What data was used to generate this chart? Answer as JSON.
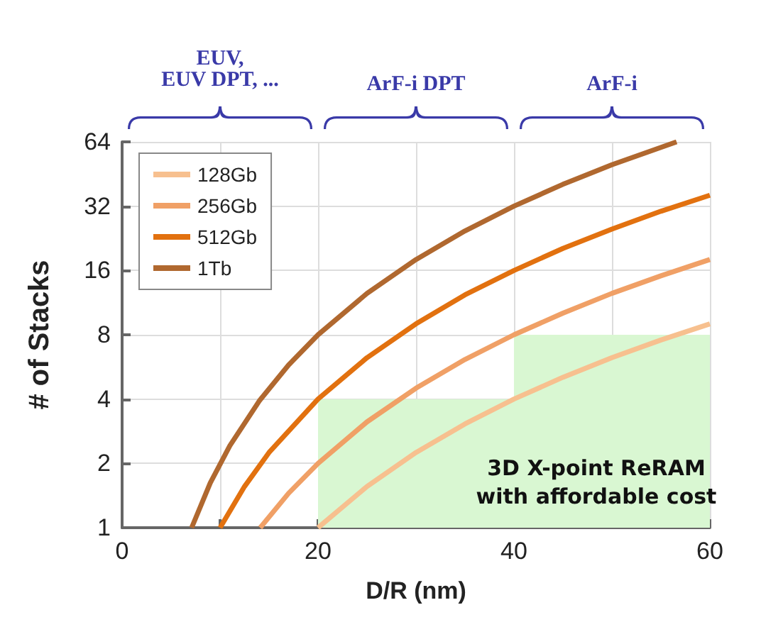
{
  "chart_data": {
    "type": "line",
    "xlabel": "D/R (nm)",
    "ylabel": "# of Stacks",
    "xlim": [
      0,
      60
    ],
    "xticks": [
      0,
      {
        "value": 10,
        "label": null
      },
      20,
      {
        "value": 30,
        "label": null
      },
      40,
      {
        "value": 50,
        "label": null
      },
      60
    ],
    "ylim": [
      1,
      64
    ],
    "yticks": [
      1,
      2,
      4,
      8,
      16,
      32,
      64
    ],
    "log": "y",
    "grid": true,
    "legend": "top left",
    "marker": "none",
    "line_style": "solid",
    "annotations": [
      "EUV,\nEUV DPT, ...",
      "ArF-i DPT",
      "ArF-i",
      "3D X-point ReRAM\nwith affordable cost"
    ],
    "series": [
      {
        "type": "area",
        "color": "#d9f7d2",
        "x": [
          20,
          40,
          40,
          60
        ],
        "values": [
          4,
          4,
          8,
          8
        ]
      },
      {
        "name": "128Gb",
        "color": "#f7c08f",
        "x": [
          20,
          25,
          30,
          35,
          40,
          45,
          50,
          55,
          60
        ],
        "values": [
          1,
          1.56,
          2.25,
          3.06,
          4,
          5.06,
          6.25,
          7.56,
          9
        ]
      },
      {
        "name": "256Gb",
        "color": "#f0a066",
        "x": [
          14.1,
          17,
          20,
          25,
          30,
          35,
          40,
          45,
          50,
          55,
          60
        ],
        "values": [
          1,
          1.45,
          2,
          3.13,
          4.5,
          6.13,
          8,
          10.1,
          12.5,
          15.1,
          18
        ]
      },
      {
        "name": "512Gb",
        "color": "#e2710f",
        "x": [
          10,
          12.5,
          15,
          20,
          25,
          30,
          35,
          40,
          45,
          50,
          55,
          60
        ],
        "values": [
          1,
          1.56,
          2.25,
          4,
          6.25,
          9,
          12.3,
          16,
          20.3,
          25,
          30.3,
          36
        ]
      },
      {
        "name": "1Tb",
        "color": "#b0682f",
        "x": [
          7.1,
          9,
          11,
          14,
          17,
          20,
          25,
          30,
          35,
          40,
          45,
          50,
          56.6
        ],
        "values": [
          1,
          1.62,
          2.42,
          3.92,
          5.78,
          8,
          12.5,
          18,
          24.5,
          32,
          40.5,
          50,
          64
        ]
      }
    ]
  }
}
